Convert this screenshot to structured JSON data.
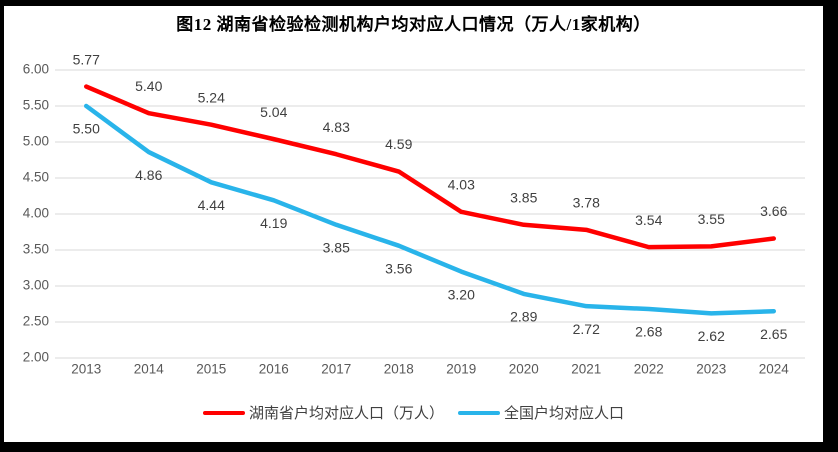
{
  "chart_data": {
    "type": "line",
    "title": "图12 湖南省检验检测机构户均对应人口情况（万人/1家机构）",
    "categories": [
      "2013",
      "2014",
      "2015",
      "2016",
      "2017",
      "2018",
      "2019",
      "2020",
      "2021",
      "2022",
      "2023",
      "2024"
    ],
    "series": [
      {
        "name": "湖南省户均对应人口（万人）",
        "color": "#FF0000",
        "values": [
          5.77,
          5.4,
          5.24,
          5.04,
          4.83,
          4.59,
          4.03,
          3.85,
          3.78,
          3.54,
          3.55,
          3.66
        ],
        "label_position": "above"
      },
      {
        "name": "全国户均对应人口",
        "color": "#29B4EA",
        "values": [
          5.5,
          4.86,
          4.44,
          4.19,
          3.85,
          3.56,
          3.2,
          2.89,
          2.72,
          2.68,
          2.62,
          2.65
        ],
        "label_position": "below"
      }
    ],
    "ylim": [
      2.0,
      6.0
    ],
    "ytick_step": 0.5,
    "value_decimals": 2,
    "grid": true,
    "legend_position": "bottom",
    "xlabel": "",
    "ylabel": ""
  },
  "colors": {
    "grid_line": "#D9D9D9",
    "axis_label": "#595959",
    "data_label": "#404040",
    "frame_border": "#000000",
    "background": "#FFFFFF"
  }
}
